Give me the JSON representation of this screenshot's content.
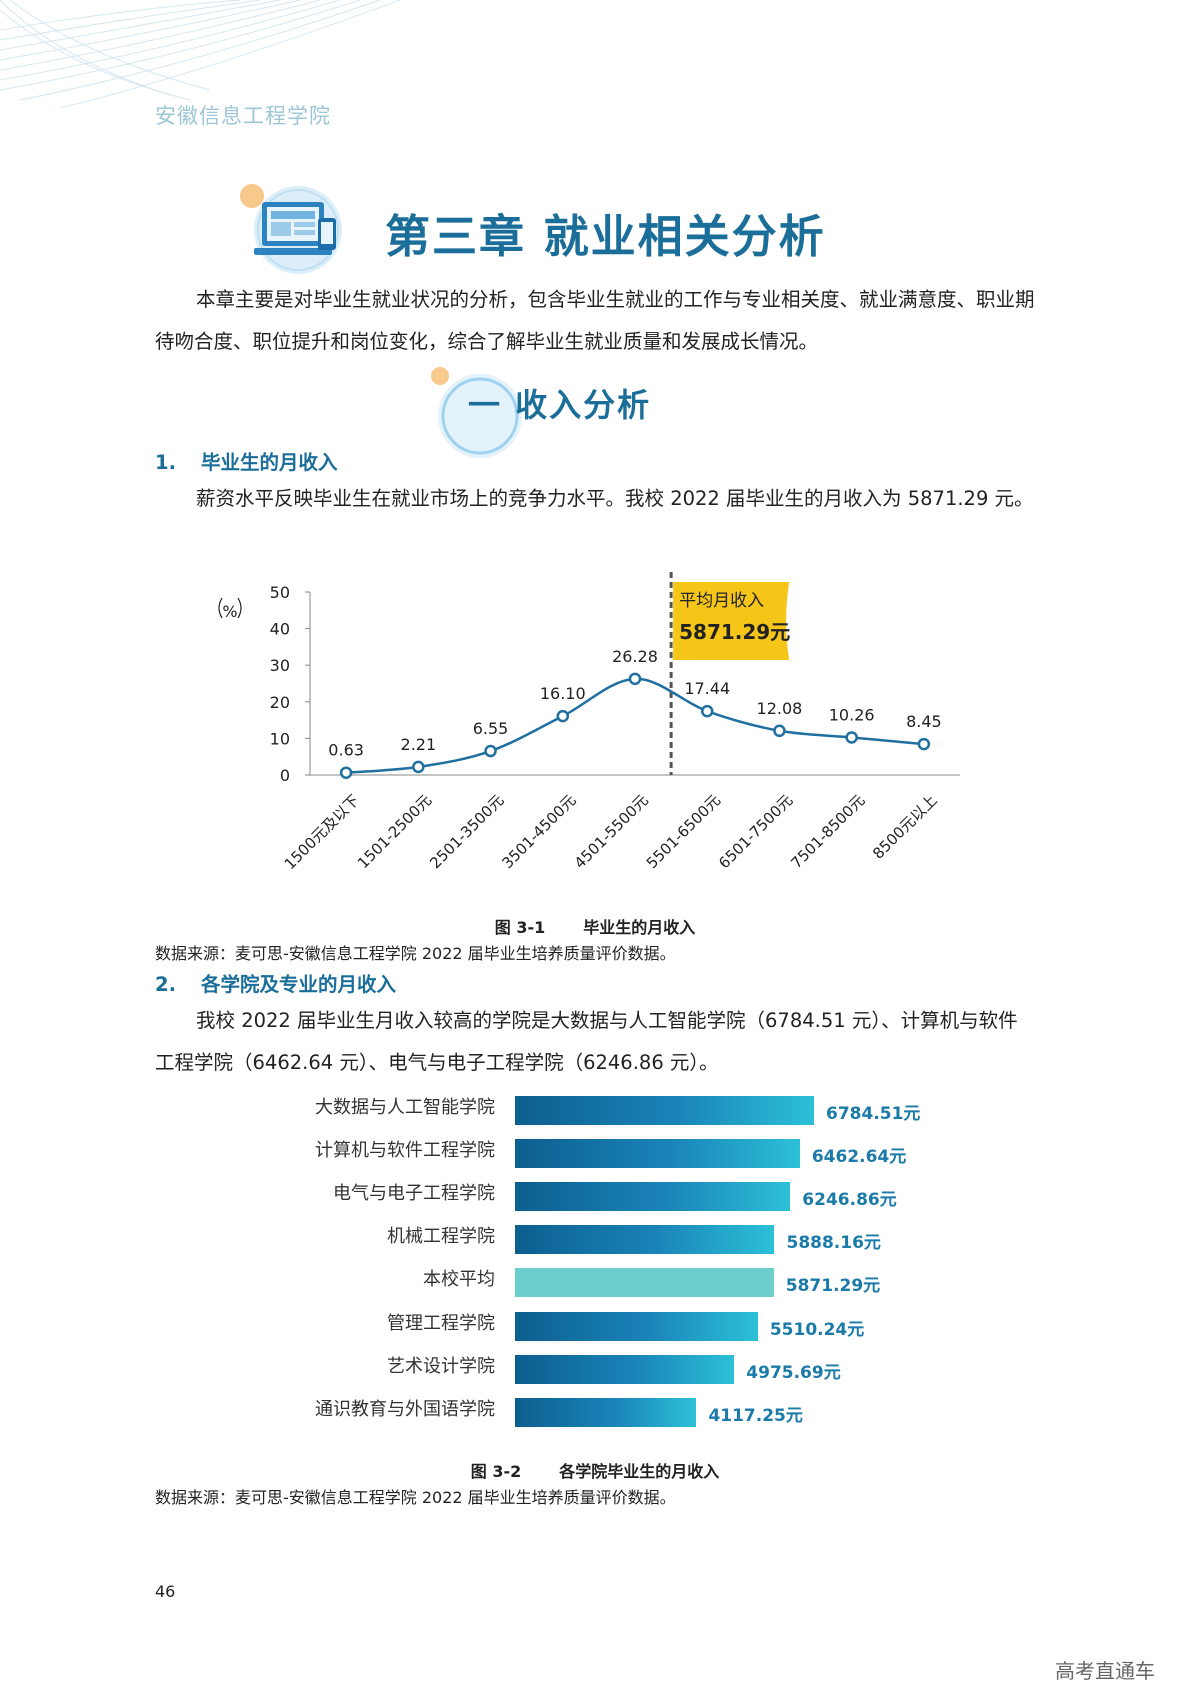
{
  "header": {
    "school": "安徽信息工程学院"
  },
  "chapter": {
    "title": "第三章 就业相关分析",
    "icon": "computer-monitor-icon"
  },
  "intro": "本章主要是对毕业生就业状况的分析，包含毕业生就业的工作与专业相关度、就业满意度、职业期待吻合度、职位提升和岗位变化，综合了解毕业生就业质量和发展成长情况。",
  "section": {
    "title": "一  收入分析"
  },
  "sub1": {
    "num": "1.",
    "title": "毕业生的月收入",
    "para": "薪资水平反映毕业生在就业市场上的竞争力水平。我校 2022 届毕业生的月收入为 5871.29 元。"
  },
  "fig1": {
    "caption_num": "图 3-1",
    "caption_title": "毕业生的月收入",
    "source": "数据来源：麦可思-安徽信息工程学院 2022 届毕业生培养质量评价数据。"
  },
  "sub2": {
    "num": "2.",
    "title": "各学院及专业的月收入",
    "para": "我校 2022 届毕业生月收入较高的学院是大数据与人工智能学院（6784.51 元）、计算机与软件工程学院（6462.64 元）、电气与电子工程学院（6246.86 元）。"
  },
  "fig2": {
    "caption_num": "图 3-2",
    "caption_title": "各学院毕业生的月收入",
    "source": "数据来源：麦可思-安徽信息工程学院 2022 届毕业生培养质量评价数据。"
  },
  "page_number": "46",
  "watermark": "高考直通车",
  "colors": {
    "primary": "#1a6e99",
    "line": "#1f6fa0",
    "flag": "#f5c518",
    "avg_bar": "#6acfcd"
  },
  "chart_data": [
    {
      "type": "line",
      "ylabel": "%",
      "ylim": [
        0,
        50
      ],
      "yticks": [
        0,
        10,
        20,
        30,
        40,
        50
      ],
      "categories": [
        "1500元及以下",
        "1501-2500元",
        "2501-3500元",
        "3501-4500元",
        "4501-5500元",
        "5501-6500元",
        "6501-7500元",
        "7501-8500元",
        "8500元以上"
      ],
      "values": [
        0.63,
        2.21,
        6.55,
        16.1,
        26.28,
        17.44,
        12.08,
        10.26,
        8.45
      ],
      "value_labels": [
        "0.63",
        "2.21",
        "6.55",
        "16.10",
        "26.28",
        "17.44",
        "12.08",
        "10.26",
        "8.45"
      ],
      "annotation": {
        "label": "平均月收入",
        "value_label": "5871.29元",
        "value": 5871.29
      }
    },
    {
      "type": "bar",
      "orientation": "horizontal",
      "categories": [
        "大数据与人工智能学院",
        "计算机与软件工程学院",
        "电气与电子工程学院",
        "机械工程学院",
        "本校平均",
        "管理工程学院",
        "艺术设计学院",
        "通识教育与外国语学院"
      ],
      "values": [
        6784.51,
        6462.64,
        6246.86,
        5888.16,
        5871.29,
        5510.24,
        4975.69,
        4117.25
      ],
      "value_labels": [
        "6784.51元",
        "6462.64元",
        "6246.86元",
        "5888.16元",
        "5871.29元",
        "5510.24元",
        "4975.69元",
        "4117.25元"
      ],
      "highlight": "本校平均"
    }
  ]
}
